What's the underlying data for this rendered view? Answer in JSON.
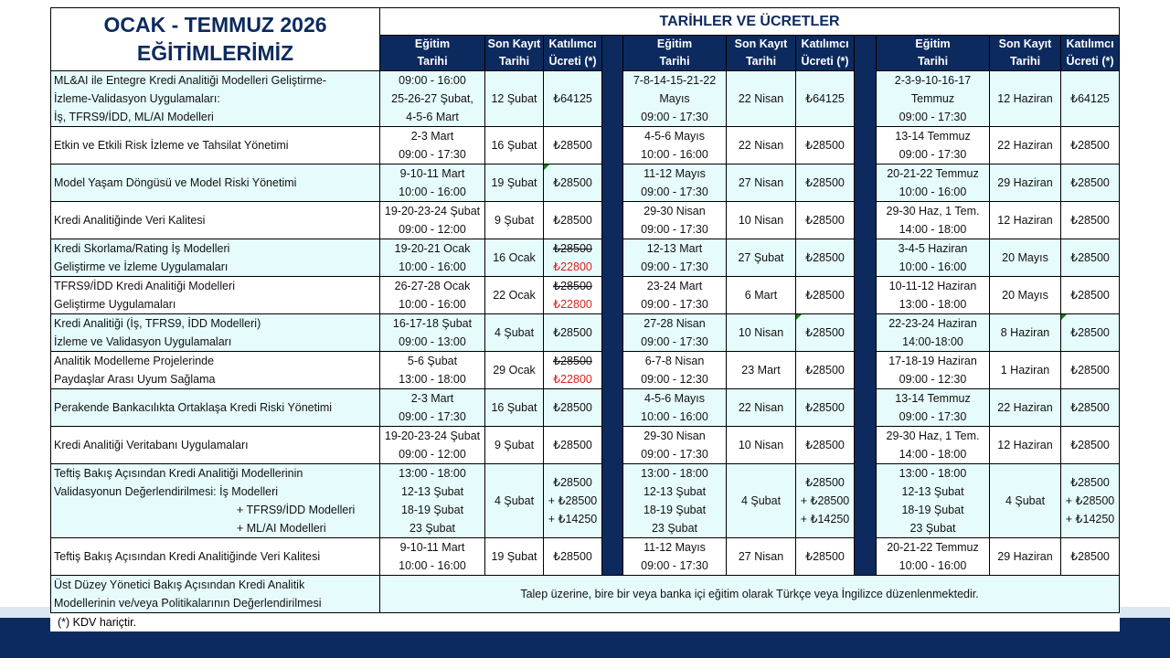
{
  "title_line1": "OCAK - TEMMUZ 2026",
  "title_line2": "EĞİTİMLERİMİZ",
  "dates_title": "TARİHLER VE ÜCRETLER",
  "headers": {
    "date": [
      "Eğitim",
      "Tarihi"
    ],
    "deadline": [
      "Son Kayıt",
      "Tarihi"
    ],
    "fee": [
      "Katılımcı",
      "Ücreti (*)"
    ]
  },
  "colors": {
    "navy": "#0c2a5e",
    "row_alt": "#e6fbfb",
    "discount": "#e0201b"
  },
  "rows": [
    {
      "name": [
        "ML&AI ile Entegre Kredi Analitiği Modelleri Geliştirme-",
        "İzleme-Validasyon Uygulamaları:",
        "İş, TFRS9/İDD, ML/AI Modelleri"
      ],
      "periods": [
        {
          "date": [
            "09:00 - 16:00",
            "25-26-27 Şubat,",
            "4-5-6 Mart"
          ],
          "deadline": "12 Şubat",
          "fee": [
            "₺64125"
          ]
        },
        {
          "date": [
            "7-8-14-15-21-22",
            "Mayıs",
            "09:00 - 17:30"
          ],
          "deadline": "22 Nisan",
          "fee": [
            "₺64125"
          ]
        },
        {
          "date": [
            "2-3-9-10-16-17",
            "Temmuz",
            "09:00 - 17:30"
          ],
          "deadline": "12 Haziran",
          "fee": [
            "₺64125"
          ]
        }
      ]
    },
    {
      "name": [
        "Etkin ve Etkili Risk İzleme ve Tahsilat Yönetimi"
      ],
      "periods": [
        {
          "date": [
            "2-3 Mart",
            "09:00 - 17:30"
          ],
          "deadline": "16 Şubat",
          "fee": [
            "₺28500"
          ]
        },
        {
          "date": [
            "4-5-6 Mayıs",
            "10:00 - 16:00"
          ],
          "deadline": "22 Nisan",
          "fee": [
            "₺28500"
          ]
        },
        {
          "date": [
            "13-14 Temmuz",
            "09:00 - 17:30"
          ],
          "deadline": "22 Haziran",
          "fee": [
            "₺28500"
          ]
        }
      ]
    },
    {
      "name": [
        "Model Yaşam Döngüsü ve Model Riski Yönetimi"
      ],
      "periods": [
        {
          "date": [
            "9-10-11 Mart",
            "10:00 - 16:00"
          ],
          "deadline": "19 Şubat",
          "fee": [
            "₺28500"
          ],
          "mark": true
        },
        {
          "date": [
            "11-12 Mayıs",
            "09:00 - 17:30"
          ],
          "deadline": "27 Nisan",
          "fee": [
            "₺28500"
          ]
        },
        {
          "date": [
            "20-21-22 Temmuz",
            "10:00 - 16:00"
          ],
          "deadline": "29 Haziran",
          "fee": [
            "₺28500"
          ]
        }
      ]
    },
    {
      "name": [
        "Kredi Analitiğinde Veri Kalitesi"
      ],
      "periods": [
        {
          "date": [
            "19-20-23-24 Şubat",
            "09:00 - 12:00"
          ],
          "deadline": "9 Şubat",
          "fee": [
            "₺28500"
          ]
        },
        {
          "date": [
            "29-30 Nisan",
            "09:00 - 17:30"
          ],
          "deadline": "10 Nisan",
          "fee": [
            "₺28500"
          ]
        },
        {
          "date": [
            "29-30 Haz, 1 Tem.",
            "14:00 - 18:00"
          ],
          "deadline": "12 Haziran",
          "fee": [
            "₺28500"
          ]
        }
      ]
    },
    {
      "name": [
        "Kredi Skorlama/Rating İş Modelleri",
        "Geliştirme ve İzleme Uygulamaları"
      ],
      "periods": [
        {
          "date": [
            "19-20-21 Ocak",
            "10:00 - 16:00"
          ],
          "deadline": "16 Ocak",
          "fee_old": "₺28500",
          "fee_new": "₺22800"
        },
        {
          "date": [
            "12-13 Mart",
            "09:00 - 17:30"
          ],
          "deadline": "27 Şubat",
          "fee": [
            "₺28500"
          ]
        },
        {
          "date": [
            "3-4-5 Haziran",
            "10:00 - 16:00"
          ],
          "deadline": "20 Mayıs",
          "fee": [
            "₺28500"
          ]
        }
      ]
    },
    {
      "name": [
        "TFRS9/İDD Kredi Analitiği Modelleri",
        "Geliştirme Uygulamaları"
      ],
      "periods": [
        {
          "date": [
            "26-27-28 Ocak",
            "10:00 - 16:00"
          ],
          "deadline": "22 Ocak",
          "fee_old": "₺28500",
          "fee_new": "₺22800"
        },
        {
          "date": [
            "23-24 Mart",
            "09:00 - 17:30"
          ],
          "deadline": "6 Mart",
          "fee": [
            "₺28500"
          ]
        },
        {
          "date": [
            "10-11-12 Haziran",
            "13:00 - 18:00"
          ],
          "deadline": "20 Mayıs",
          "fee": [
            "₺28500"
          ]
        }
      ]
    },
    {
      "name": [
        "Kredi Analitiği (İş, TFRS9, İDD Modelleri)",
        "İzleme ve Validasyon Uygulamaları"
      ],
      "periods": [
        {
          "date": [
            "16-17-18 Şubat",
            "09:00 - 13:00"
          ],
          "deadline": "4 Şubat",
          "fee": [
            "₺28500"
          ]
        },
        {
          "date": [
            "27-28 Nisan",
            "09:00 - 17:30"
          ],
          "deadline": "10 Nisan",
          "fee": [
            "₺28500"
          ],
          "mark": true
        },
        {
          "date": [
            "22-23-24 Haziran",
            "14:00-18:00"
          ],
          "deadline": "8 Haziran",
          "fee": [
            "₺28500"
          ],
          "mark": true
        }
      ]
    },
    {
      "name": [
        "Analitik Modelleme Projelerinde",
        "Paydaşlar Arası Uyum Sağlama"
      ],
      "periods": [
        {
          "date": [
            "5-6 Şubat",
            "13:00 - 18:00"
          ],
          "deadline": "29 Ocak",
          "fee_old": "₺28500",
          "fee_new": "₺22800"
        },
        {
          "date": [
            "6-7-8 Nisan",
            "09:00 - 12:30"
          ],
          "deadline": "23 Mart",
          "fee": [
            "₺28500"
          ]
        },
        {
          "date": [
            "17-18-19 Haziran",
            "09:00 - 12:30"
          ],
          "deadline": "1 Haziran",
          "fee": [
            "₺28500"
          ]
        }
      ]
    },
    {
      "name": [
        "Perakende Bankacılıkta Ortaklaşa Kredi Riski Yönetimi"
      ],
      "periods": [
        {
          "date": [
            "2-3 Mart",
            "09:00 - 17:30"
          ],
          "deadline": "16 Şubat",
          "fee": [
            "₺28500"
          ]
        },
        {
          "date": [
            "4-5-6 Mayıs",
            "10:00 - 16:00"
          ],
          "deadline": "22 Nisan",
          "fee": [
            "₺28500"
          ]
        },
        {
          "date": [
            "13-14 Temmuz",
            "09:00 - 17:30"
          ],
          "deadline": "22 Haziran",
          "fee": [
            "₺28500"
          ]
        }
      ]
    },
    {
      "name": [
        "Kredi Analitiği Veritabanı Uygulamaları"
      ],
      "periods": [
        {
          "date": [
            "19-20-23-24 Şubat",
            "09:00 - 12:00"
          ],
          "deadline": "9 Şubat",
          "fee": [
            "₺28500"
          ]
        },
        {
          "date": [
            "29-30 Nisan",
            "09:00 - 17:30"
          ],
          "deadline": "10 Nisan",
          "fee": [
            "₺28500"
          ]
        },
        {
          "date": [
            "29-30 Haz, 1 Tem.",
            "14:00 - 18:00"
          ],
          "deadline": "12 Haziran",
          "fee": [
            "₺28500"
          ]
        }
      ]
    },
    {
      "name": [
        "Teftiş Bakış Açısından Kredi Analitiği Modellerinin",
        "Validasyonun Değerlendirilmesi:  İş Modelleri",
        "+ TFRS9/İDD Modelleri",
        "+ ML/AI Modelleri"
      ],
      "periods": [
        {
          "date": [
            "13:00 - 18:00",
            "12-13 Şubat",
            "18-19 Şubat",
            "23 Şubat"
          ],
          "deadline": "4 Şubat",
          "fee": [
            "₺28500",
            "+ ₺28500",
            "+ ₺14250"
          ]
        },
        {
          "date": [
            "13:00 - 18:00",
            "12-13 Şubat",
            "18-19 Şubat",
            "23 Şubat"
          ],
          "deadline": "4 Şubat",
          "fee": [
            "₺28500",
            "+ ₺28500",
            "+ ₺14250"
          ]
        },
        {
          "date": [
            "13:00 - 18:00",
            "12-13 Şubat",
            "18-19 Şubat",
            "23 Şubat"
          ],
          "deadline": "4 Şubat",
          "fee": [
            "₺28500",
            "+ ₺28500",
            "+ ₺14250"
          ]
        }
      ]
    },
    {
      "name": [
        "Teftiş Bakış Açısından Kredi Analitiğinde Veri Kalitesi"
      ],
      "periods": [
        {
          "date": [
            "9-10-11 Mart",
            "10:00 - 16:00"
          ],
          "deadline": "19 Şubat",
          "fee": [
            "₺28500"
          ]
        },
        {
          "date": [
            "11-12 Mayıs",
            "09:00 - 17:30"
          ],
          "deadline": "27 Nisan",
          "fee": [
            "₺28500"
          ]
        },
        {
          "date": [
            "20-21-22 Temmuz",
            "10:00 - 16:00"
          ],
          "deadline": "29 Haziran",
          "fee": [
            "₺28500"
          ]
        }
      ]
    }
  ],
  "last_row": {
    "name": [
      "Üst Düzey Yönetici Bakış Açısından Kredi Analitik",
      "Modellerinin ve/veya Politikalarının Değerlendirilmesi"
    ],
    "note": "Talep üzerine, bire bir veya banka içi eğitim olarak Türkçe veya İngilizce düzenlenmektedir."
  },
  "footnote": "(*) KDV hariçtir."
}
